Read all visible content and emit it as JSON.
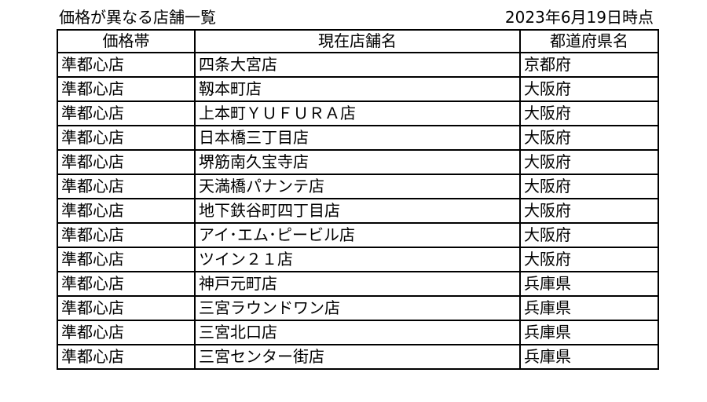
{
  "title": "価格が異なる店舗一覧",
  "date": "2023年6月19日時点",
  "table": {
    "headers": [
      "価格帯",
      "現在店舗名",
      "都道府県名"
    ],
    "rows": [
      [
        "準都心店",
        "四条大宮店",
        "京都府"
      ],
      [
        "準都心店",
        "靱本町店",
        "大阪府"
      ],
      [
        "準都心店",
        "上本町ＹＵＦＵＲＡ店",
        "大阪府"
      ],
      [
        "準都心店",
        "日本橋三丁目店",
        "大阪府"
      ],
      [
        "準都心店",
        "堺筋南久宝寺店",
        "大阪府"
      ],
      [
        "準都心店",
        "天満橋パナンテ店",
        "大阪府"
      ],
      [
        "準都心店",
        "地下鉄谷町四丁目店",
        "大阪府"
      ],
      [
        "準都心店",
        "アイ･エム･ピービル店",
        "大阪府"
      ],
      [
        "準都心店",
        "ツイン２１店",
        "大阪府"
      ],
      [
        "準都心店",
        "神戸元町店",
        "兵庫県"
      ],
      [
        "準都心店",
        "三宮ラウンドワン店",
        "兵庫県"
      ],
      [
        "準都心店",
        "三宮北口店",
        "兵庫県"
      ],
      [
        "準都心店",
        "三宮センター街店",
        "兵庫県"
      ]
    ]
  }
}
